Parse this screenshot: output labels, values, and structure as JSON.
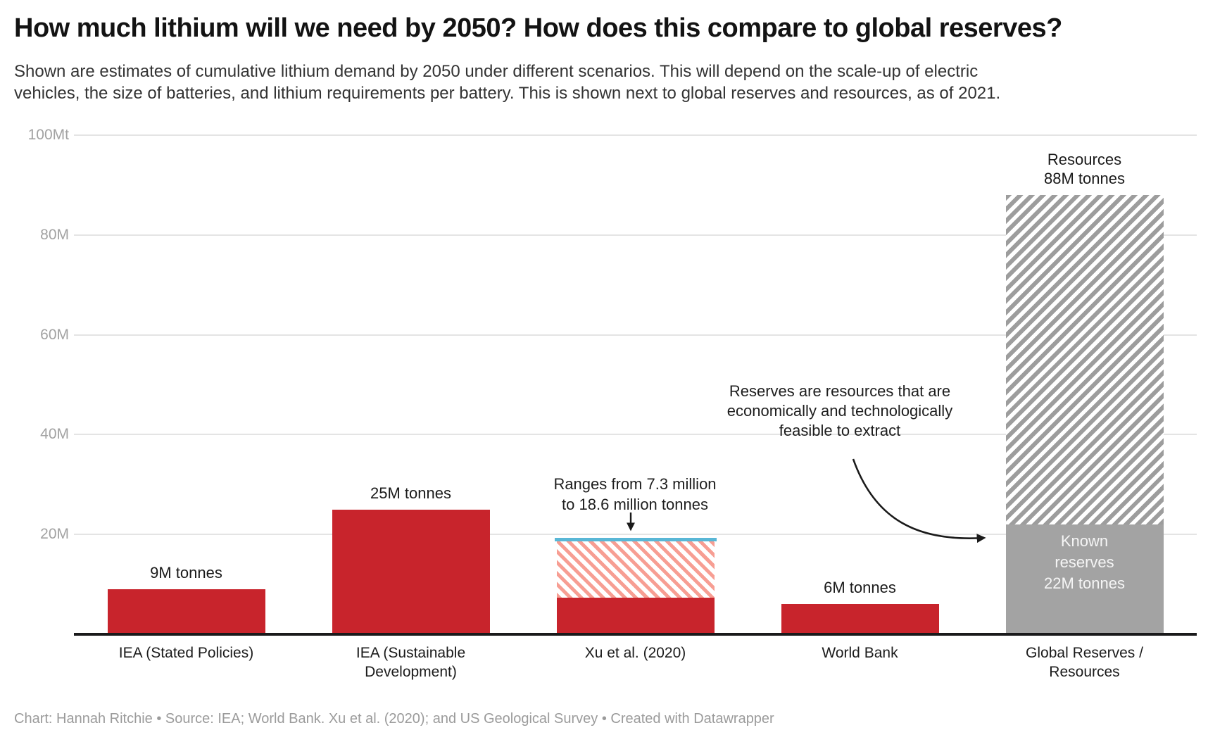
{
  "header": {
    "title": "How much lithium will we need by 2050? How does this compare to global reserves?",
    "subtitle": "Shown are estimates of cumulative lithium demand by 2050 under different scenarios. This will depend on the scale-up of electric vehicles, the size of batteries, and lithium requirements per battery. This is shown next to global reserves and resources, as of 2021.",
    "subtitle_lines": [
      "Shown are estimates of cumulative lithium demand by 2050 under different scenarios. This will depend on the scale-up of electric",
      "vehicles, the size of batteries, and lithium requirements per battery. This is shown next to global reserves and resources, as of 2021."
    ]
  },
  "footer": {
    "attribution": "Chart: Hannah Ritchie • Source: IEA; World Bank. Xu et al. (2020); and US Geological Survey • Created with Datawrapper"
  },
  "colors": {
    "bar_red": "#c8242c",
    "range_hatch_red": "#f79e93",
    "range_cap_blue": "#59b7d6",
    "reserves_solid_gray": "#a3a3a3",
    "resources_hatch_gray": "#9d9d9d",
    "gridline": "#e4e4e4",
    "axis_line": "#1a1a1b",
    "tick_text": "#a2a2a2",
    "footer_text": "#9b9b9b"
  },
  "chart_data": {
    "type": "bar",
    "title": "How much lithium will we need by 2050? How does this compare to global reserves?",
    "unit": "million tonnes of lithium (Mt)",
    "xlabel": "",
    "ylabel": "",
    "ylim": [
      0,
      100
    ],
    "grid": true,
    "y_axis": {
      "ticks": [
        {
          "value": 100,
          "label": "100Mt"
        },
        {
          "value": 80,
          "label": "80M"
        },
        {
          "value": 60,
          "label": "60M"
        },
        {
          "value": 40,
          "label": "40M"
        },
        {
          "value": 20,
          "label": "20M"
        }
      ]
    },
    "categories": [
      "IEA (Stated Policies)",
      "IEA (Sustainable Development)",
      "Xu et al. (2020)",
      "World Bank",
      "Global Reserves / Resources"
    ],
    "values": [
      9,
      25,
      null,
      6,
      88
    ],
    "bars": [
      {
        "category": "IEA (Stated Policies)",
        "category_lines": [
          "IEA (Stated Policies)"
        ],
        "value": 9,
        "value_label_lines": [
          "9M tonnes"
        ],
        "segments": [
          {
            "from": 0,
            "to": 9,
            "style": "solid-red"
          }
        ]
      },
      {
        "category": "IEA (Sustainable Development)",
        "category_lines": [
          "IEA (Sustainable",
          "Development)"
        ],
        "value": 25,
        "value_label_lines": [
          "25M tonnes"
        ],
        "segments": [
          {
            "from": 0,
            "to": 25,
            "style": "solid-red"
          }
        ]
      },
      {
        "category": "Xu et al. (2020)",
        "category_lines": [
          "Xu et al. (2020)"
        ],
        "value_range": [
          7.3,
          18.6
        ],
        "cap_value": 18.6,
        "segments": [
          {
            "from": 0,
            "to": 7.3,
            "style": "solid-red"
          },
          {
            "from": 7.3,
            "to": 18.6,
            "style": "hatch-red"
          }
        ]
      },
      {
        "category": "World Bank",
        "category_lines": [
          "World Bank"
        ],
        "value": 6,
        "value_label_lines": [
          "6M tonnes"
        ],
        "segments": [
          {
            "from": 0,
            "to": 6,
            "style": "solid-red"
          }
        ]
      },
      {
        "category": "Global Reserves / Resources",
        "category_lines": [
          "Global Reserves /",
          "Resources"
        ],
        "value": 88,
        "reserves_value": 22,
        "value_label_lines": [
          "Resources",
          "88M tonnes"
        ],
        "segments": [
          {
            "from": 0,
            "to": 22,
            "style": "solid-gray",
            "inner_label_lines": [
              "Known",
              "reserves",
              "22M tonnes"
            ]
          },
          {
            "from": 22,
            "to": 88,
            "style": "hatch-gray"
          }
        ]
      }
    ],
    "annotations": {
      "ranges": {
        "lines": [
          "Ranges from 7.3 million",
          "to 18.6 million tonnes"
        ]
      },
      "reserves": {
        "lines": [
          "Reserves are resources that are",
          "economically and technologically",
          "feasible to extract"
        ]
      }
    }
  }
}
